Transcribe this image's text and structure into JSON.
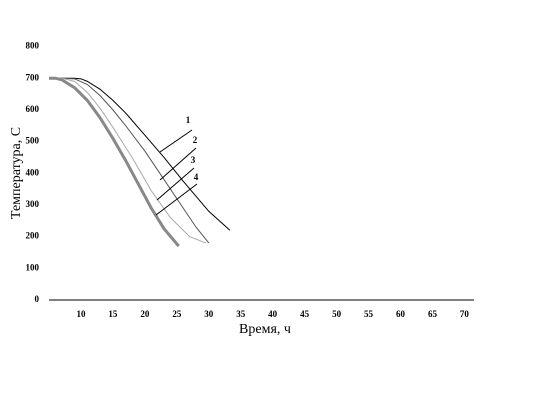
{
  "chart_data": {
    "type": "line",
    "x_label": "Время, ч",
    "y_label": "Температура, С",
    "xlim": [
      5,
      71.5
    ],
    "ylim": [
      0,
      830
    ],
    "xticks": [
      10,
      15,
      20,
      25,
      30,
      35,
      40,
      45,
      50,
      55,
      60,
      65,
      70
    ],
    "yticks": [
      0,
      100,
      200,
      300,
      400,
      500,
      600,
      700,
      800
    ],
    "grid": false,
    "series": [
      {
        "name": "1",
        "color": "#000000",
        "width": 1,
        "x": [
          5,
          7,
          9,
          10,
          11,
          13,
          15,
          17,
          20,
          23,
          26,
          30,
          33.3
        ],
        "values": [
          700,
          700,
          700,
          698,
          690,
          665,
          630,
          590,
          520,
          450,
          375,
          280,
          220
        ]
      },
      {
        "name": "2",
        "color": "#555555",
        "width": 1,
        "x": [
          5,
          7,
          9,
          11,
          13,
          15,
          17,
          20,
          23,
          26,
          28,
          30
        ],
        "values": [
          700,
          700,
          698,
          680,
          645,
          600,
          550,
          470,
          380,
          290,
          230,
          180
        ]
      },
      {
        "name": "3",
        "color": "#aaaaaa",
        "width": 1,
        "x": [
          5,
          7,
          9,
          11,
          13,
          15,
          18,
          21,
          24,
          27,
          29.5
        ],
        "values": [
          700,
          700,
          690,
          655,
          605,
          545,
          450,
          345,
          260,
          200,
          180
        ]
      },
      {
        "name": "4",
        "color": "#888888",
        "width": 3,
        "x": [
          5,
          6,
          7,
          9,
          11,
          13,
          15,
          17,
          19,
          21,
          23,
          25.3
        ],
        "values": [
          700,
          700,
          695,
          670,
          630,
          575,
          510,
          440,
          365,
          290,
          225,
          170
        ]
      }
    ]
  }
}
